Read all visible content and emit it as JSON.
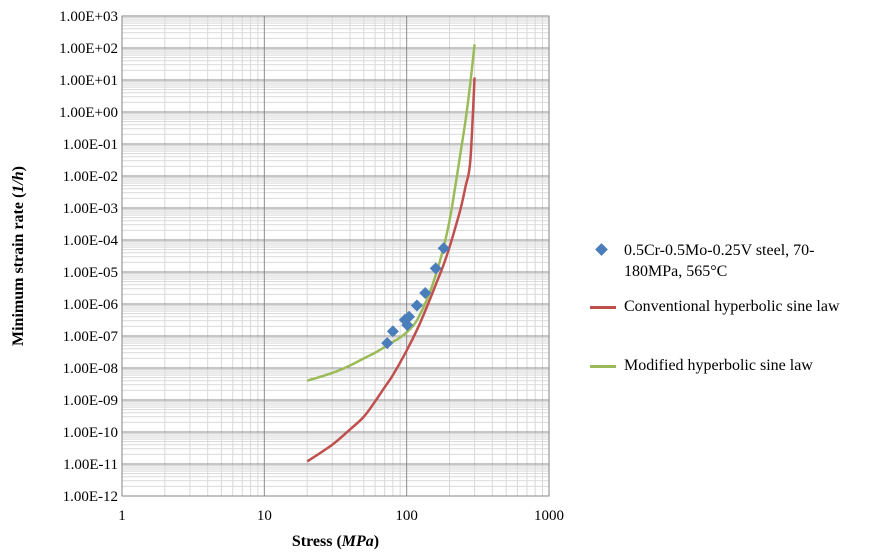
{
  "chart_data": {
    "type": "scatter",
    "xlabel": "Stress (MPa)",
    "xlabel_plain": "Stress (",
    "xlabel_italic": "MPa",
    "xlabel_close": ")",
    "ylabel_plain": "Minimum strain rate (",
    "ylabel_italic": "1/h",
    "ylabel_close": ")",
    "x_scale": "log",
    "y_scale": "log",
    "xlim": [
      1,
      1000
    ],
    "ylim": [
      1e-12,
      1000
    ],
    "grid": true,
    "legend_position": "right",
    "x_ticks": [
      "1",
      "10",
      "100",
      "1000"
    ],
    "y_ticks": [
      "1.00E-12",
      "1.00E-11",
      "1.00E-10",
      "1.00E-09",
      "1.00E-08",
      "1.00E-07",
      "1.00E-06",
      "1.00E-05",
      "1.00E-04",
      "1.00E-03",
      "1.00E-02",
      "1.00E-01",
      "1.00E+00",
      "1.00E+01",
      "1.00E+02",
      "1.00E+03"
    ],
    "series": [
      {
        "name": "0.5Cr-0.5Mo-0.25V  steel, 70-180MPa, 565°C",
        "name_line1": "0.5Cr-0.5Mo-0.25V  steel, 70-",
        "name_line2": "180MPa, 565°C",
        "kind": "markers",
        "color": "#4a7ebb",
        "x": [
          73,
          80,
          97,
          101,
          104,
          118,
          135,
          160,
          182
        ],
        "y": [
          6e-08,
          1.4e-07,
          3.2e-07,
          2.2e-07,
          4e-07,
          9e-07,
          2.2e-06,
          1.3e-05,
          5.5e-05
        ]
      },
      {
        "name": "Conventional hyperbolic sine law",
        "kind": "line",
        "color": "#c0504d",
        "x": [
          20,
          30,
          40,
          50,
          60,
          70,
          80,
          100,
          120,
          140,
          160,
          180,
          200,
          220,
          240,
          260,
          280,
          300
        ],
        "y": [
          1.2e-11,
          4e-11,
          1.2e-10,
          3e-10,
          9e-10,
          2.5e-09,
          6e-09,
          3.5e-08,
          1.8e-07,
          9e-07,
          4e-06,
          1.5e-05,
          6e-05,
          0.00025,
          0.001,
          0.005,
          0.03,
          12
        ]
      },
      {
        "name": "Modified hyperbolic sine law",
        "kind": "line",
        "color": "#9bbb59",
        "x": [
          20,
          30,
          40,
          50,
          60,
          70,
          80,
          90,
          100,
          110,
          120,
          140,
          160,
          180,
          200,
          220,
          240,
          260,
          280,
          300
        ],
        "y": [
          4e-09,
          7e-09,
          1.2e-08,
          2e-08,
          3e-08,
          4.5e-08,
          6.5e-08,
          9e-08,
          1.3e-07,
          2e-07,
          3.5e-07,
          1.5e-06,
          8e-06,
          5e-05,
          0.0004,
          0.005,
          0.06,
          0.6,
          8,
          130
        ]
      }
    ]
  }
}
